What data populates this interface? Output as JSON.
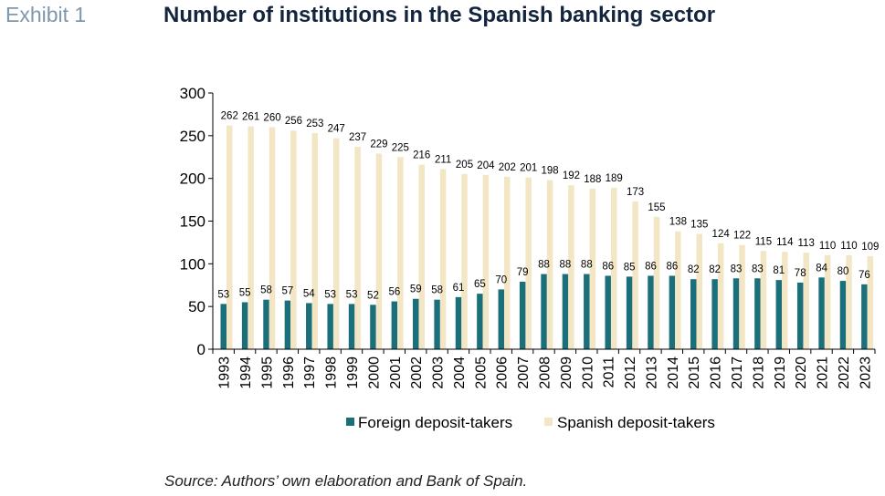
{
  "header": {
    "exhibit": "Exhibit 1",
    "title": "Number of institutions in the Spanish banking sector"
  },
  "footer": {
    "source": "Source: Authors’ own elaboration and Bank of Spain."
  },
  "chart_data": {
    "type": "bar",
    "title": "Number of institutions in the Spanish banking sector",
    "xlabel": "",
    "ylabel": "",
    "ylim": [
      0,
      300
    ],
    "yticks": [
      0,
      50,
      100,
      150,
      200,
      250,
      300
    ],
    "grid": false,
    "legend": "bottom",
    "categories": [
      "1993",
      "1994",
      "1995",
      "1996",
      "1997",
      "1998",
      "1999",
      "2000",
      "2001",
      "2002",
      "2003",
      "2004",
      "2005",
      "2006",
      "2007",
      "2008",
      "2009",
      "2010",
      "2011",
      "2012",
      "2013",
      "2014",
      "2015",
      "2016",
      "2017",
      "2018",
      "2019",
      "2020",
      "2021",
      "2022",
      "2023"
    ],
    "series": [
      {
        "name": "Foreign deposit-takers",
        "color": "#1b6f7b",
        "values": [
          53,
          55,
          58,
          57,
          54,
          53,
          53,
          52,
          56,
          59,
          58,
          61,
          65,
          70,
          79,
          88,
          88,
          88,
          86,
          85,
          86,
          86,
          82,
          82,
          83,
          83,
          81,
          78,
          84,
          80,
          76
        ]
      },
      {
        "name": "Spanish deposit-takers",
        "color": "#f3e6c5",
        "values": [
          262,
          261,
          260,
          256,
          253,
          247,
          237,
          229,
          225,
          216,
          211,
          205,
          204,
          202,
          201,
          198,
          192,
          188,
          189,
          173,
          155,
          138,
          135,
          124,
          122,
          115,
          114,
          113,
          110,
          110,
          109
        ]
      }
    ]
  }
}
